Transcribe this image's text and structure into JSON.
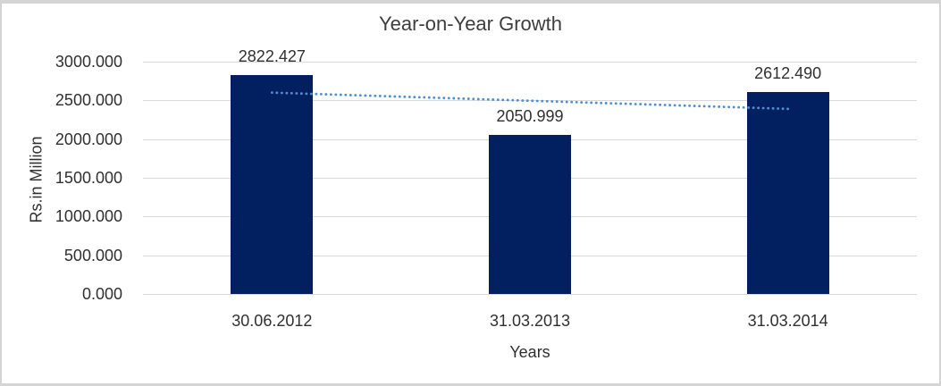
{
  "frame": {
    "background": "#ffffff",
    "border_color": "#d4d4d4"
  },
  "chart_data": {
    "type": "bar",
    "title": "Year-on-Year Growth",
    "xlabel": "Years",
    "ylabel": "Rs.in Million",
    "categories": [
      "30.06.2012",
      "31.03.2013",
      "31.03.2014"
    ],
    "series": [
      {
        "name": "Rs.in Million",
        "values": [
          2822.427,
          2050.999,
          2612.49
        ]
      }
    ],
    "data_labels": [
      "2822.427",
      "2050.999",
      "2612.490"
    ],
    "ylim": [
      0,
      3000
    ],
    "ytick_step": 500,
    "ytick_labels": [
      "0.000",
      "500.000",
      "1000.000",
      "1500.000",
      "2000.000",
      "2500.000",
      "3000.000"
    ],
    "grid": true,
    "legend_position": "none",
    "trendline": {
      "type": "linear",
      "style": "dotted",
      "start_value": 2600.3,
      "end_value": 2390.3
    },
    "colors": {
      "bar": "#022060",
      "trendline": "#4f8fd0",
      "gridline": "#d9d9d9",
      "text": "#303030",
      "title": "#3d3d3d"
    }
  }
}
